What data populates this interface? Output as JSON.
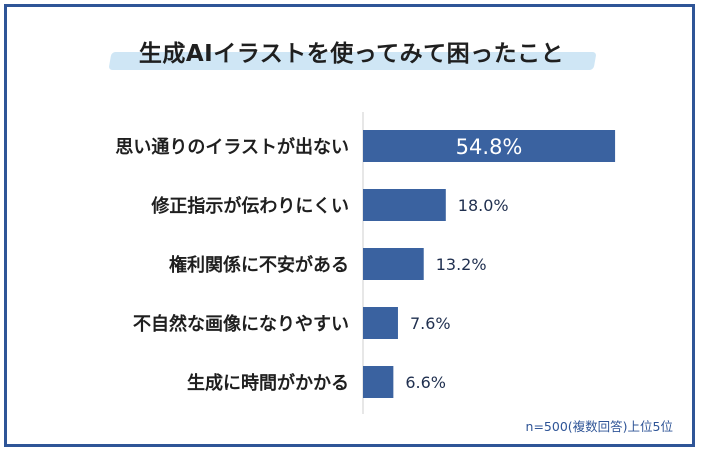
{
  "chart_data": {
    "type": "bar",
    "orientation": "horizontal",
    "title": "生成AIイラストを使ってみて困ったこと",
    "categories": [
      "思い通りのイラストが出ない",
      "修正指示が伝わりにくい",
      "権利関係に不安がある",
      "不自然な画像になりやすい",
      "生成に時間がかかる"
    ],
    "values": [
      54.8,
      18.0,
      13.2,
      7.6,
      6.6
    ],
    "value_labels": [
      "54.8%",
      "18.0%",
      "13.2%",
      "7.6%",
      "6.6%"
    ],
    "xlim": [
      0,
      100
    ],
    "grid": false,
    "bar_color": "#3a62a0",
    "inside_label_color": "#ffffff",
    "outside_label_color": "#1f2f4f",
    "note": "n=500(複数回答)上位5位"
  }
}
